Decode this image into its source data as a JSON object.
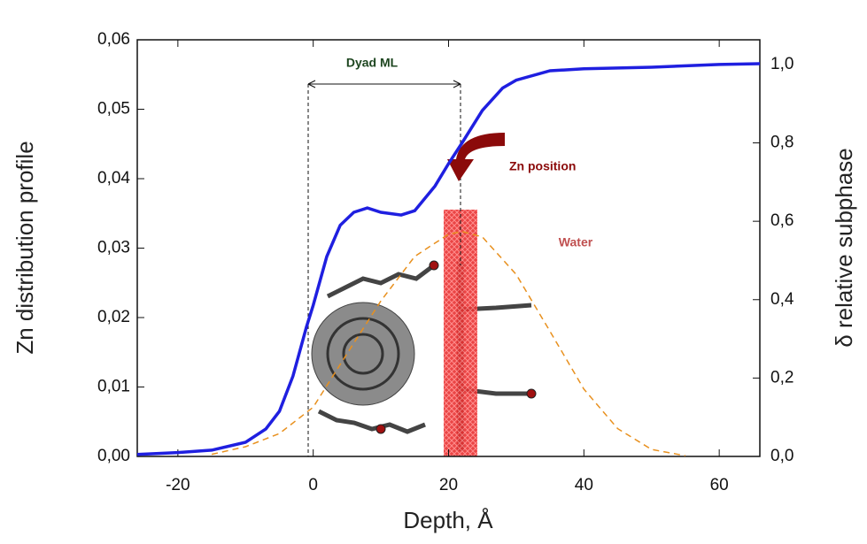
{
  "chart_data": {
    "type": "line",
    "xlabel": "Depth, Å",
    "ylabel": "Zn distribution profile",
    "y2label": "δ relative subphase",
    "xlim": [
      -26,
      66
    ],
    "ylim": [
      0,
      0.06
    ],
    "y2lim": [
      0,
      1.063
    ],
    "xticks": [
      -20,
      0,
      20,
      40,
      60
    ],
    "yticks": [
      {
        "value": 0,
        "label": "0,00"
      },
      {
        "value": 0.01,
        "label": "0,01"
      },
      {
        "value": 0.02,
        "label": "0,02"
      },
      {
        "value": 0.03,
        "label": "0,03"
      },
      {
        "value": 0.04,
        "label": "0,04"
      },
      {
        "value": 0.05,
        "label": "0,05"
      },
      {
        "value": 0.06,
        "label": "0,06"
      }
    ],
    "y2ticks": [
      {
        "value": 0,
        "label": "0,0"
      },
      {
        "value": 0.2,
        "label": "0,2"
      },
      {
        "value": 0.4,
        "label": "0,4"
      },
      {
        "value": 0.6,
        "label": "0,6"
      },
      {
        "value": 0.8,
        "label": "0,8"
      },
      {
        "value": 1.0,
        "label": "1,0"
      }
    ],
    "annotations": [
      "Dyad ML",
      "Zn position",
      "Water"
    ],
    "series": [
      {
        "color": "#e8901e",
        "dashed": true,
        "axis": "y",
        "x": [
          -15,
          -10,
          -5,
          0,
          5,
          10,
          15,
          20,
          22,
          25,
          30,
          35,
          40,
          45,
          50,
          55
        ],
        "values": [
          0.0003,
          0.0014,
          0.0033,
          0.0071,
          0.0148,
          0.0224,
          0.0288,
          0.032,
          0.0324,
          0.0316,
          0.0262,
          0.018,
          0.0097,
          0.004,
          0.001,
          0.0001
        ]
      },
      {
        "color": "#1f1fe0",
        "dashed": false,
        "axis": "y2",
        "x": [
          -26,
          -20,
          -15,
          -10,
          -7,
          -5,
          -3,
          -1,
          0,
          2,
          4,
          6,
          8,
          10,
          13,
          15,
          18,
          20,
          22,
          25,
          28,
          30,
          35,
          40,
          50,
          60,
          66
        ],
        "values": [
          0.005,
          0.01,
          0.016,
          0.036,
          0.07,
          0.115,
          0.205,
          0.33,
          0.386,
          0.51,
          0.59,
          0.623,
          0.634,
          0.623,
          0.616,
          0.627,
          0.69,
          0.747,
          0.8,
          0.883,
          0.94,
          0.96,
          0.984,
          0.989,
          0.993,
          1.0,
          1.002
        ]
      }
    ]
  }
}
